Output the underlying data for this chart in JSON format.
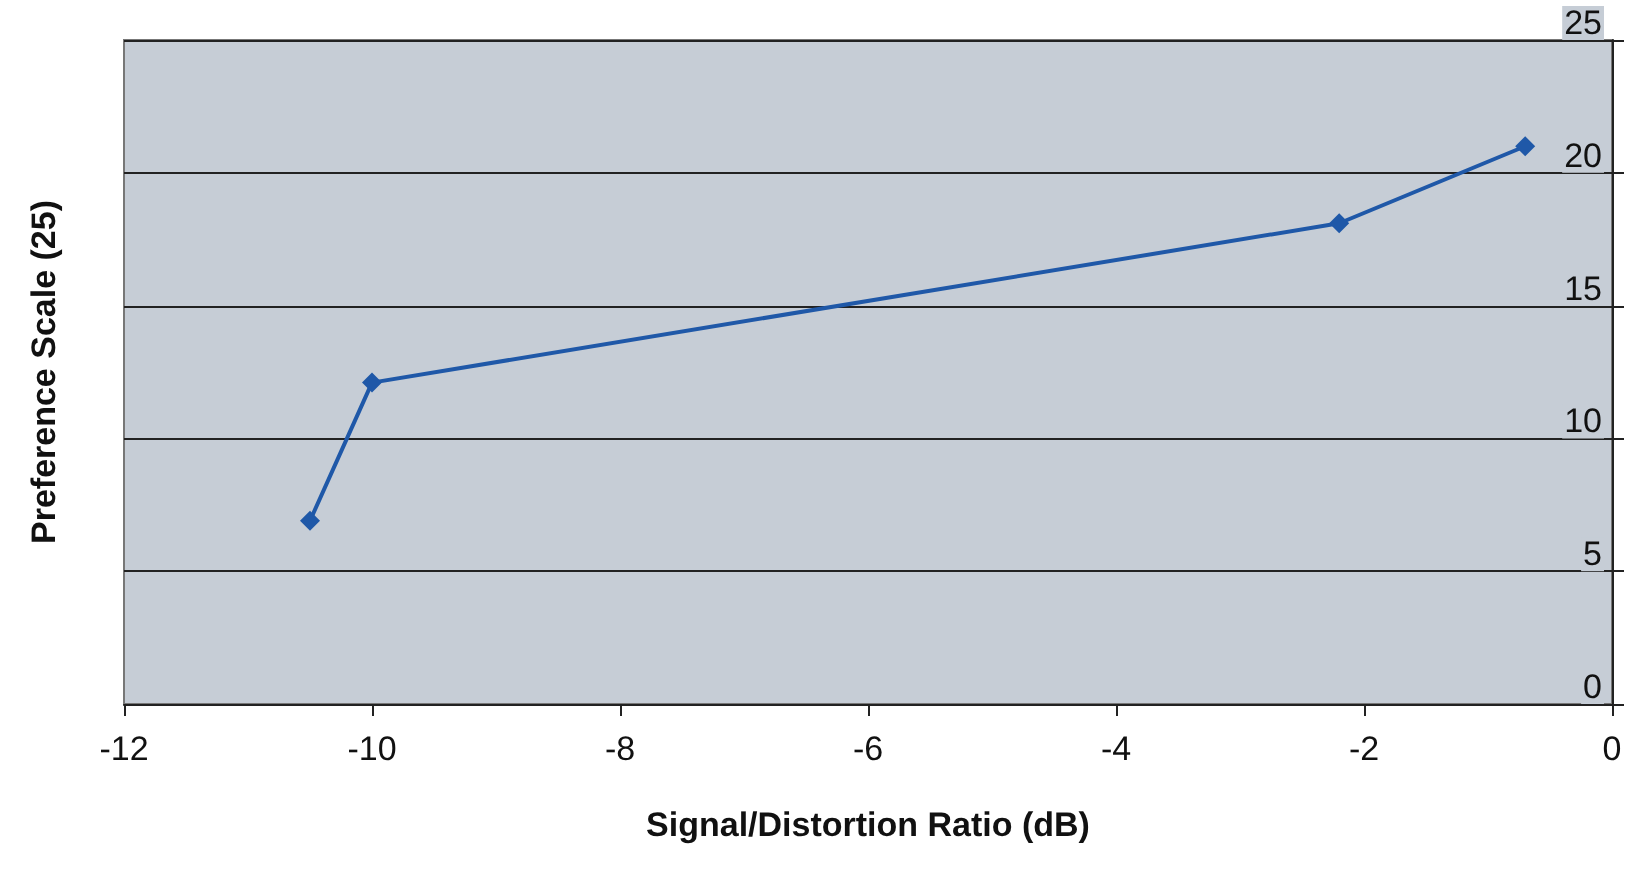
{
  "chart_data": {
    "type": "line",
    "xlabel": "Signal/Distortion Ratio (dB)",
    "ylabel": "Preference Scale (25)",
    "x": [
      -10.5,
      -10,
      -2.2,
      -0.7
    ],
    "series": [
      {
        "color": "#1f58a8",
        "values": [
          6.9,
          12.1,
          18.1,
          21
        ]
      }
    ],
    "xlim": [
      -12,
      0
    ],
    "xticks": [
      -12,
      -10,
      -8,
      -6,
      -4,
      -2,
      0
    ],
    "ylim": [
      0,
      25
    ],
    "yticks": [
      0,
      5,
      10,
      15,
      20,
      25
    ],
    "grid": "y",
    "marker": "diamond",
    "line_style": "solid"
  }
}
